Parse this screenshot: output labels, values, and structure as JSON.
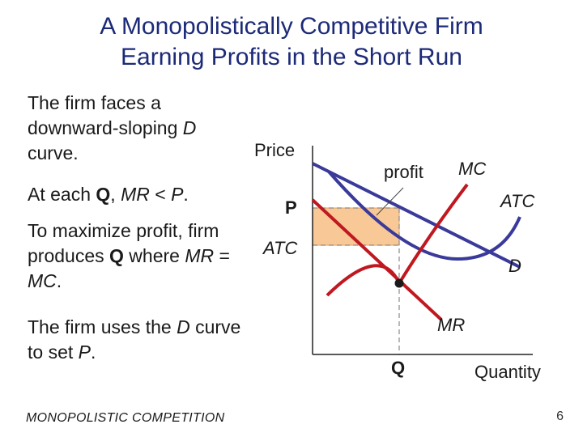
{
  "title": {
    "line1": "A Monopolistically Competitive Firm",
    "line2": "Earning Profits in the Short Run"
  },
  "bullets": {
    "b1": {
      "t1": "The firm faces a downward-sloping ",
      "t2": "D",
      "t3": " curve."
    },
    "b2": {
      "t1": "At each ",
      "t2": "Q",
      "t3": ", ",
      "t4": "MR",
      "t5": " < ",
      "t6": "P",
      "t7": "."
    },
    "b3": {
      "t1": "To maximize profit, firm produces ",
      "t2": "Q",
      "t3": " where ",
      "t4": "MR",
      "t5": " = ",
      "t6": "MC",
      "t7": "."
    },
    "b4": {
      "t1": "The firm uses the ",
      "t2": "D",
      "t3": " curve to set ",
      "t4": "P",
      "t5": "."
    }
  },
  "diagram": {
    "y_axis_label": "Price",
    "x_axis_label": "Quantity",
    "price_label": "P",
    "atc_axis_label": "ATC",
    "quantity_label": "Q",
    "profit_label": "profit",
    "curves": {
      "mc": "MC",
      "atc": "ATC",
      "demand": "D",
      "mr": "MR"
    },
    "colors": {
      "mc_curve": "#c01820",
      "mr_curve": "#c01820",
      "atc_curve": "#3a3a9a",
      "demand_curve": "#3a3a9a",
      "profit_fill": "#f8c896",
      "title": "#1c2a78"
    }
  },
  "footer": "MONOPOLISTIC COMPETITION",
  "page_number": "6"
}
